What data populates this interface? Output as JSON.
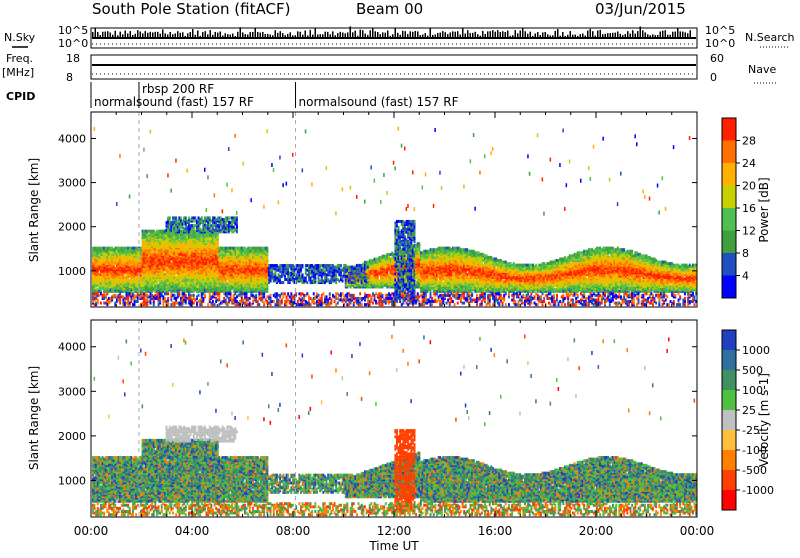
{
  "header": {
    "station": "South Pole Station (fitACF)",
    "beam": "Beam 00",
    "date": "03/Jun/2015"
  },
  "aux_labels": {
    "nsky": "N.Sky",
    "nsearch": "N.Search",
    "freq": "Freq.",
    "freq_unit": "[MHz]",
    "nave": "Nave",
    "cpid": "CPID",
    "nsky_top": "10^5",
    "nsky_bot": "10^0",
    "nsearch_top": "10^5",
    "nsearch_bot": "10^0",
    "freq_top": "18",
    "freq_bot": "8",
    "nave_top": "60",
    "nave_bot": "0"
  },
  "cpid_segments": [
    {
      "label": "normalsound (fast) 157 RF",
      "start_hr": 0,
      "row": 2
    },
    {
      "label": "rbsp 200 RF",
      "start_hr": 1.9,
      "row": 1
    },
    {
      "label": "normalsound (fast) 157 RF",
      "start_hr": 8.1,
      "row": 2
    }
  ],
  "chart_data": [
    {
      "type": "heatmap",
      "panel": "power",
      "ylabel": "Slant Range [km]",
      "xlabel": "Time UT",
      "x_ticks": [
        "00:00",
        "04:00",
        "08:00",
        "12:00",
        "16:00",
        "20:00",
        "00:00"
      ],
      "x_range_hr": [
        0,
        24
      ],
      "y_ticks": [
        1000,
        2000,
        3000,
        4000
      ],
      "y_range_km": [
        180,
        4600
      ],
      "colorbar": {
        "label": "Power [dB]",
        "ticks": [
          "4",
          "8",
          "12",
          "16",
          "20",
          "24",
          "28"
        ],
        "colors": [
          "#0000ff",
          "#2050c0",
          "#40a040",
          "#50c050",
          "#c8d000",
          "#ffb000",
          "#ff7000",
          "#ff2000"
        ]
      }
    },
    {
      "type": "heatmap",
      "panel": "velocity",
      "ylabel": "Slant Range [km]",
      "xlabel": "Time UT",
      "x_ticks": [
        "00:00",
        "04:00",
        "08:00",
        "12:00",
        "16:00",
        "20:00",
        "00:00"
      ],
      "x_range_hr": [
        0,
        24
      ],
      "y_ticks": [
        1000,
        2000,
        3000,
        4000
      ],
      "y_range_km": [
        180,
        4600
      ],
      "colorbar": {
        "label": "Velocity [m s-1]",
        "ticks": [
          "1000",
          "500",
          "100",
          "25",
          "-25",
          "-100",
          "-500",
          "-1000"
        ],
        "colors": [
          "#2040c0",
          "#3070a0",
          "#409060",
          "#50c040",
          "#c0c0c0",
          "#ffc040",
          "#ff8000",
          "#ff4000",
          "#ff0000"
        ]
      }
    }
  ],
  "xaxis": {
    "label": "Time UT",
    "ticks": [
      "00:00",
      "04:00",
      "08:00",
      "12:00",
      "16:00",
      "20:00",
      "00:00"
    ]
  }
}
